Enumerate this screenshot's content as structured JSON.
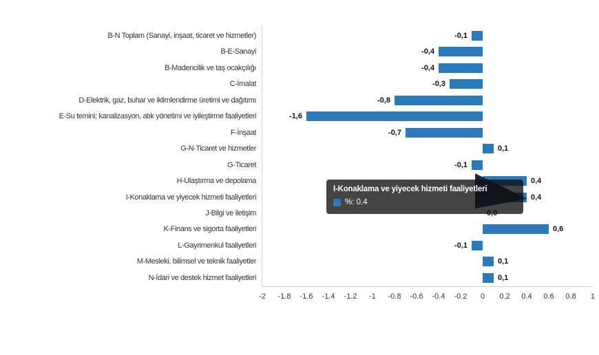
{
  "chart_data": {
    "type": "bar",
    "orientation": "horizontal",
    "title": "",
    "xlabel": "",
    "ylabel": "",
    "unit": "%",
    "categories": [
      "B-N Toplam (Sanayi, inşaat, ticaret ve hizmetler)",
      "B-E-Sanayi",
      "B-Madencilik ve taş ocakçılığı",
      "C-İmalat",
      "D-Elektrik, gaz, buhar ve iklimlendirme üretimi ve dağıtımı",
      "E-Su temini; kanalizasyon, atık yönetimi ve iyileştirme faaliyetleri",
      "F-İnşaat",
      "G-N-Ticaret ve hizmetler",
      "G-Ticaret",
      "H-Ulaştırma ve depolama",
      "I-Konaklama ve yiyecek hizmeti faaliyetleri",
      "J-Bilgi ve iletişim",
      "K-Finans ve sigorta faaliyetleri",
      "L-Gayrimenkul faaliyetleri",
      "M-Mesleki, bilimsel ve teknik faaliyetler",
      "N-İdari ve destek hizmet faaliyetleri"
    ],
    "values": [
      -0.1,
      -0.4,
      -0.4,
      -0.3,
      -0.8,
      -1.6,
      -0.7,
      0.1,
      -0.1,
      0.4,
      0.4,
      0.0,
      0.6,
      -0.1,
      0.1,
      0.1
    ],
    "value_labels": [
      "-0,1",
      "-0,4",
      "-0,4",
      "-0,3",
      "-0,8",
      "-1,6",
      "-0,7",
      "0,1",
      "-0,1",
      "0,4",
      "0,4",
      "0,0",
      "0,6",
      "-0,1",
      "0,1",
      "0,1"
    ],
    "xlim": [
      -2,
      1
    ],
    "x_tick_values": [
      -2,
      -1.8,
      -1.6,
      -1.4,
      -1.2,
      -1,
      -0.8,
      -0.6,
      -0.4,
      -0.2,
      0,
      0.2,
      0.4,
      0.6,
      0.8,
      1
    ],
    "x_ticks": [
      "-2",
      "-1.8",
      "-1.6",
      "-1.4",
      "-1.2",
      "-1",
      "-0.8",
      "-0.6",
      "-0.4",
      "-0.2",
      "0",
      "0.2",
      "0.4",
      "0.6",
      "0.8",
      "1"
    ],
    "grid": false,
    "legend": "none",
    "bar_color": "#2b7bba"
  },
  "tooltip": {
    "title": "I-Konaklama ve yiyecek hizmeti faaliyetleri",
    "value_label": "%: 0.4",
    "swatch_color": "#2b7bba",
    "callout_color": "#1a2a3c"
  }
}
